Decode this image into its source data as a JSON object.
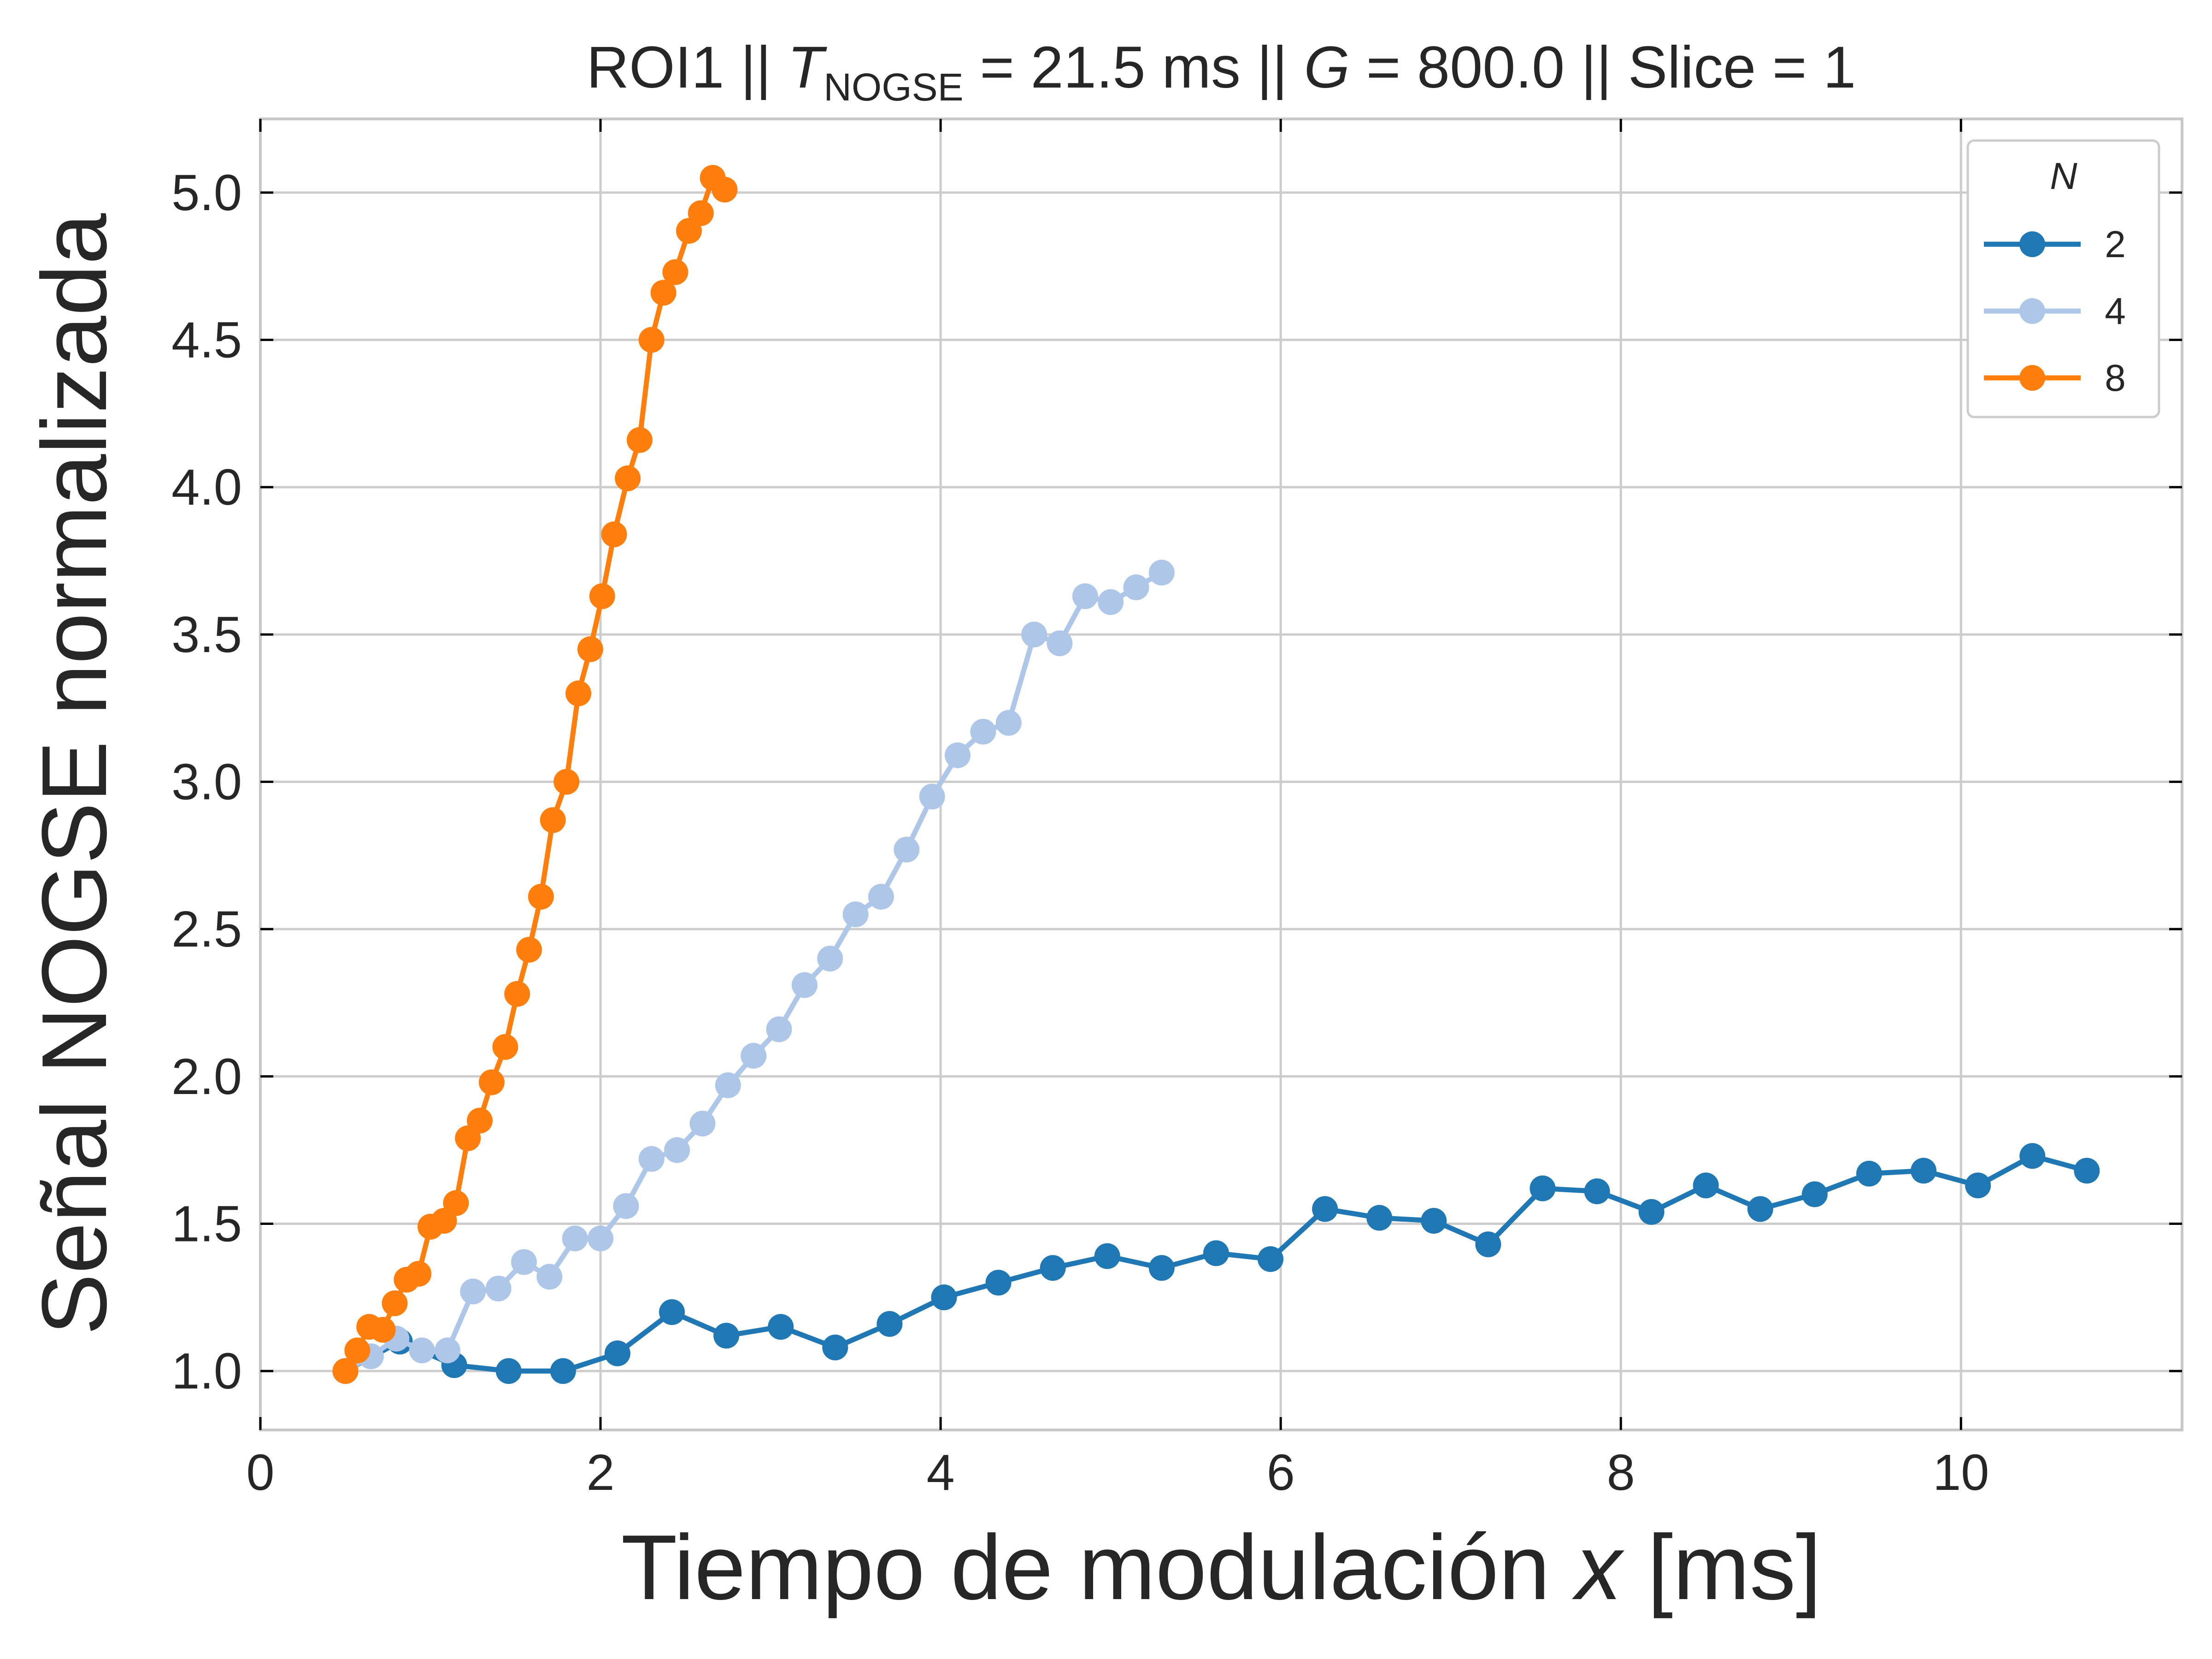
{
  "chart_data": {
    "type": "line",
    "title": {
      "prefix": "ROI1 || ",
      "t_symbol": "T",
      "t_subscript": "NOGSE",
      "t_value": " = 21.5 ms  ||  ",
      "g_symbol": "G",
      "g_value": " = 800.0 || Slice = 1"
    },
    "xlabel": {
      "text": "Tiempo de modulación ",
      "italic": "x",
      "unit": " [ms]"
    },
    "ylabel": "Señal NOGSE normalizada",
    "xlim": [
      0,
      11.3
    ],
    "ylim": [
      0.8,
      5.25
    ],
    "xticks": [
      0,
      2,
      4,
      6,
      8,
      10
    ],
    "xtick_labels": [
      "0",
      "2",
      "4",
      "6",
      "8",
      "10"
    ],
    "yticks": [
      1.0,
      1.5,
      2.0,
      2.5,
      3.0,
      3.5,
      4.0,
      4.5,
      5.0
    ],
    "ytick_labels": [
      "1.0",
      "1.5",
      "2.0",
      "2.5",
      "3.0",
      "3.5",
      "4.0",
      "4.5",
      "5.0"
    ],
    "grid": true,
    "legend": {
      "title": "N",
      "placement": "top-right"
    },
    "series": [
      {
        "name": "2",
        "color": "#1f77b4",
        "x": [
          0.5,
          0.82,
          1.14,
          1.46,
          1.78,
          2.1,
          2.42,
          2.74,
          3.06,
          3.38,
          3.7,
          4.02,
          4.34,
          4.66,
          4.98,
          5.3,
          5.62,
          5.94,
          6.26,
          6.58,
          6.9,
          7.22,
          7.54,
          7.86,
          8.18,
          8.5,
          8.82,
          9.14,
          9.46,
          9.78,
          10.1,
          10.42,
          10.74
        ],
        "y": [
          1.0,
          1.1,
          1.02,
          1.0,
          1.0,
          1.06,
          1.2,
          1.12,
          1.15,
          1.08,
          1.16,
          1.25,
          1.3,
          1.35,
          1.39,
          1.35,
          1.4,
          1.38,
          1.55,
          1.52,
          1.51,
          1.43,
          1.62,
          1.61,
          1.54,
          1.63,
          1.55,
          1.6,
          1.67,
          1.68,
          1.63,
          1.73,
          1.68
        ]
      },
      {
        "name": "4",
        "color": "#aec7e8",
        "x": [
          0.5,
          0.65,
          0.8,
          0.95,
          1.1,
          1.25,
          1.4,
          1.55,
          1.7,
          1.85,
          2.0,
          2.15,
          2.3,
          2.45,
          2.6,
          2.75,
          2.9,
          3.05,
          3.2,
          3.35,
          3.5,
          3.65,
          3.8,
          3.95,
          4.1,
          4.25,
          4.4,
          4.55,
          4.7,
          4.85,
          5.0,
          5.15,
          5.3
        ],
        "y": [
          1.0,
          1.05,
          1.11,
          1.07,
          1.07,
          1.27,
          1.28,
          1.37,
          1.32,
          1.45,
          1.45,
          1.56,
          1.72,
          1.75,
          1.84,
          1.97,
          2.07,
          2.16,
          2.31,
          2.4,
          2.55,
          2.61,
          2.77,
          2.95,
          3.09,
          3.17,
          3.2,
          3.5,
          3.47,
          3.63,
          3.61,
          3.66,
          3.71
        ]
      },
      {
        "name": "8",
        "color": "#ff7f0e",
        "x": [
          0.5,
          0.57,
          0.64,
          0.72,
          0.79,
          0.86,
          0.93,
          1.0,
          1.08,
          1.15,
          1.22,
          1.29,
          1.36,
          1.44,
          1.51,
          1.58,
          1.65,
          1.72,
          1.8,
          1.87,
          1.94,
          2.01,
          2.08,
          2.16,
          2.23,
          2.3,
          2.37,
          2.44,
          2.52,
          2.59,
          2.66,
          2.73
        ],
        "y": [
          1.0,
          1.07,
          1.15,
          1.14,
          1.23,
          1.31,
          1.33,
          1.49,
          1.51,
          1.57,
          1.79,
          1.85,
          1.98,
          2.1,
          2.28,
          2.43,
          2.61,
          2.87,
          3.0,
          3.3,
          3.45,
          3.63,
          3.84,
          4.03,
          4.16,
          4.5,
          4.66,
          4.73,
          4.87,
          4.93,
          5.05,
          5.01
        ]
      }
    ]
  }
}
